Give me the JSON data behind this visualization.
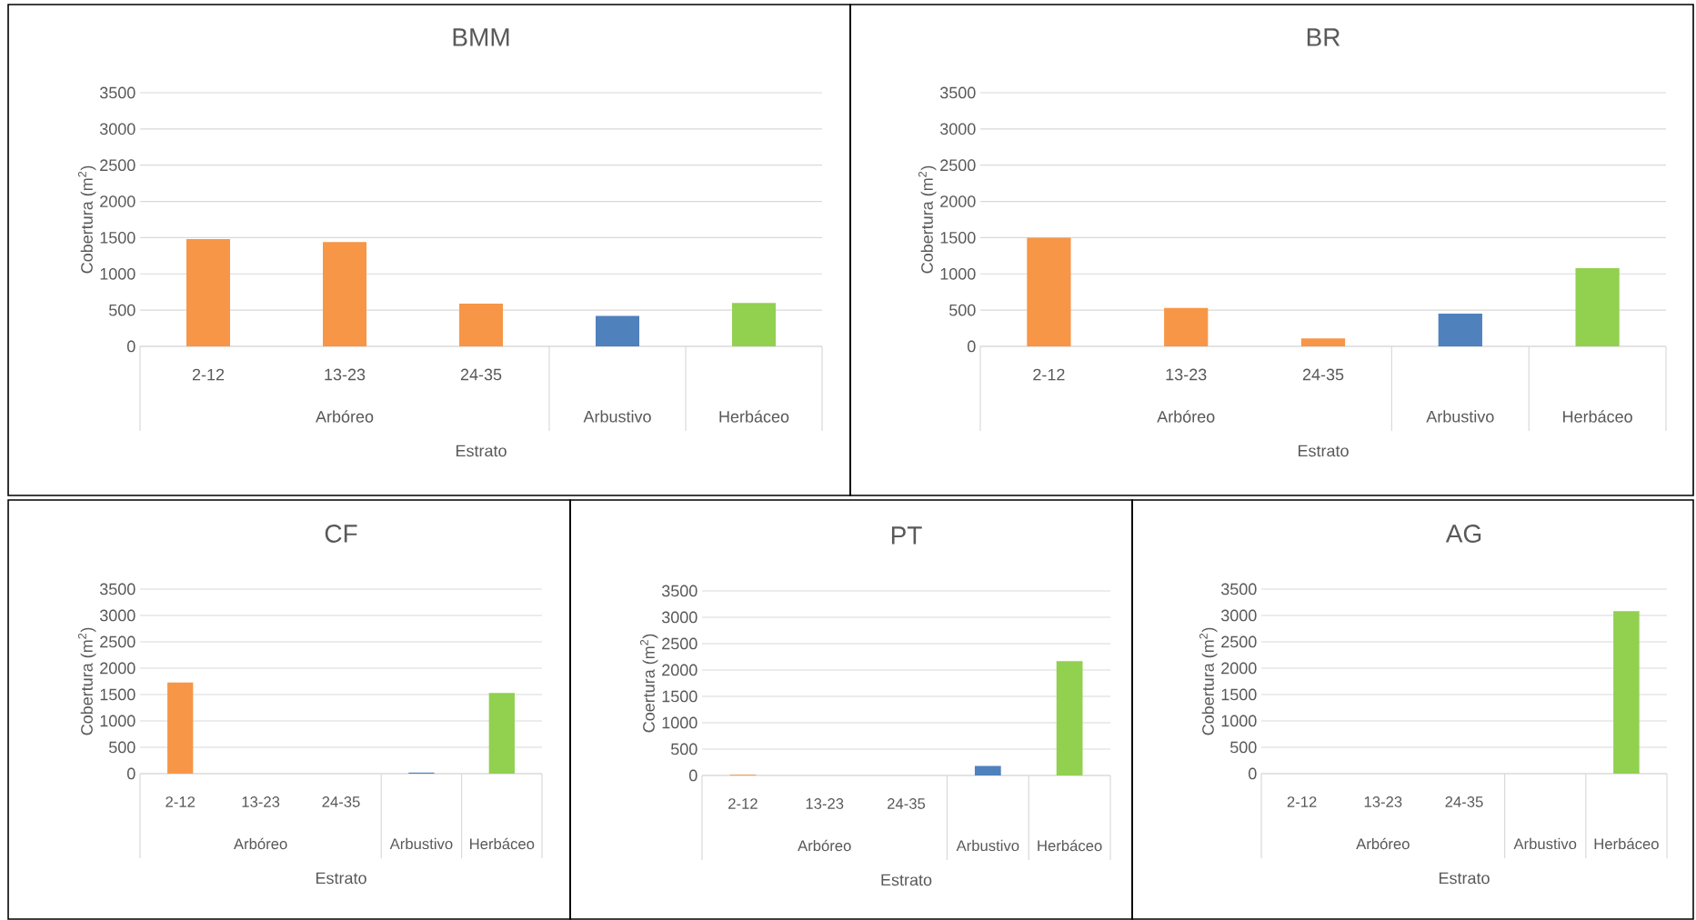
{
  "chart_data": [
    {
      "type": "bar",
      "title": "BMM",
      "xlabel": "Estrato",
      "ylabel": "Cobertura (m$^{2}$)",
      "categories": [
        "2-12",
        "13-23",
        "24-35",
        "Arbustivo",
        "Herbáceo"
      ],
      "annotations": [
        "Arbóreo"
      ],
      "values": [
        1480,
        1440,
        590,
        420,
        600
      ],
      "colors": [
        "#f79646",
        "#f79646",
        "#f79646",
        "#4f81bd",
        "#92d050"
      ],
      "ylim": [
        0,
        3500
      ],
      "yticks": [
        0,
        500,
        1000,
        1500,
        2000,
        2500,
        3000,
        3500
      ],
      "grid": "y"
    },
    {
      "type": "bar",
      "title": "BR",
      "xlabel": "Estrato",
      "ylabel": "Cobertura (m$^{2}$)",
      "categories": [
        "2-12",
        "13-23",
        "24-35",
        "Arbustivo",
        "Herbáceo"
      ],
      "annotations": [
        "Arbóreo"
      ],
      "values": [
        1500,
        530,
        110,
        450,
        1080
      ],
      "colors": [
        "#f79646",
        "#f79646",
        "#f79646",
        "#4f81bd",
        "#92d050"
      ],
      "ylim": [
        0,
        3500
      ],
      "yticks": [
        0,
        500,
        1000,
        1500,
        2000,
        2500,
        3000,
        3500
      ],
      "grid": "y"
    },
    {
      "type": "bar",
      "title": "CF",
      "xlabel": "Estrato",
      "ylabel": "Cobertura (m$^{2}$)",
      "categories": [
        "2-12",
        "13-23",
        "24-35",
        "Arbustivo",
        "Herbáceo"
      ],
      "annotations": [
        "Arbóreo"
      ],
      "values": [
        1730,
        0,
        0,
        20,
        1530
      ],
      "colors": [
        "#f79646",
        "#f79646",
        "#f79646",
        "#4f81bd",
        "#92d050"
      ],
      "ylim": [
        0,
        3500
      ],
      "yticks": [
        0,
        500,
        1000,
        1500,
        2000,
        2500,
        3000,
        3500
      ],
      "grid": "y"
    },
    {
      "type": "bar",
      "title": "PT",
      "xlabel": "Estrato",
      "ylabel": "Coertura (m$^{2}$)",
      "categories": [
        "2-12",
        "13-23",
        "24-35",
        "Arbustivo",
        "Herbáceo"
      ],
      "annotations": [
        "Arbóreo"
      ],
      "values": [
        15,
        0,
        0,
        180,
        2170
      ],
      "colors": [
        "#f79646",
        "#f79646",
        "#f79646",
        "#4f81bd",
        "#92d050"
      ],
      "ylim": [
        0,
        3500
      ],
      "yticks": [
        0,
        500,
        1000,
        1500,
        2000,
        2500,
        3000,
        3500
      ],
      "grid": "y"
    },
    {
      "type": "bar",
      "title": "AG",
      "xlabel": "Estrato",
      "ylabel": "Cobertura (m$^{2}$)",
      "categories": [
        "2-12",
        "13-23",
        "24-35",
        "Arbustivo",
        "Herbáceo"
      ],
      "annotations": [
        "Arbóreo"
      ],
      "values": [
        0,
        0,
        0,
        0,
        3080
      ],
      "colors": [
        "#f79646",
        "#f79646",
        "#f79646",
        "#4f81bd",
        "#92d050"
      ],
      "ylim": [
        0,
        3500
      ],
      "yticks": [
        0,
        500,
        1000,
        1500,
        2000,
        2500,
        3000,
        3500
      ],
      "grid": "y"
    }
  ]
}
